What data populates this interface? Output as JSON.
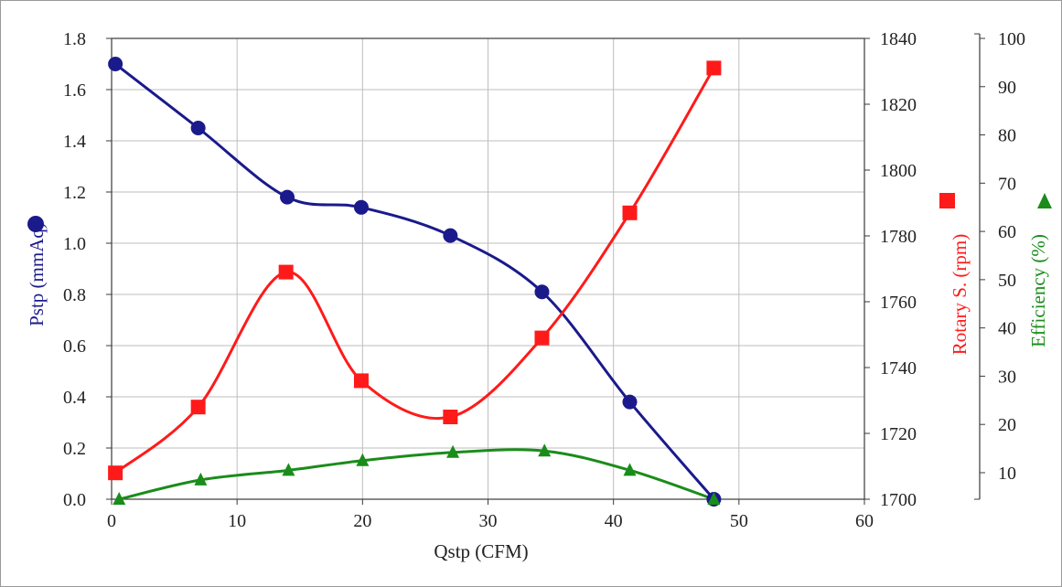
{
  "chart_data": {
    "type": "line",
    "xlabel": "Qstp (CFM)",
    "ylabel_left": "Pstp (mmAq)",
    "ylabel_right1": "Rotary S. (rpm)",
    "ylabel_right2": "Efficiency (%)",
    "xlim": [
      0,
      60
    ],
    "ylim_left": [
      0,
      1.8
    ],
    "ylim_right1": [
      1700,
      1840
    ],
    "ylim_right2": [
      4.5,
      100
    ],
    "x_ticks": [
      "0",
      "10",
      "20",
      "30",
      "40",
      "50",
      "60"
    ],
    "y_left_ticks": [
      "0.0",
      "0.2",
      "0.4",
      "0.6",
      "0.8",
      "1.0",
      "1.2",
      "1.4",
      "1.6",
      "1.8"
    ],
    "y_right1_ticks": [
      "1700",
      "1720",
      "1740",
      "1760",
      "1780",
      "1800",
      "1820",
      "1840"
    ],
    "y_right2_ticks": [
      "10",
      "20",
      "30",
      "40",
      "50",
      "60",
      "70",
      "80",
      "90",
      "100"
    ],
    "grid": true,
    "series": [
      {
        "axis": "left",
        "marker": "circle",
        "color": "#1a1a8c",
        "x": [
          0.3,
          6.9,
          14.0,
          19.9,
          27.0,
          34.3,
          41.3,
          48.0
        ],
        "y": [
          1.7,
          1.45,
          1.18,
          1.14,
          1.03,
          0.81,
          0.38,
          0.0
        ]
      },
      {
        "axis": "right1",
        "marker": "square",
        "color": "#ff1a1a",
        "x": [
          0.3,
          6.9,
          13.9,
          19.9,
          27.0,
          34.3,
          41.3,
          48.0
        ],
        "y": [
          1708,
          1728,
          1769,
          1736,
          1725,
          1749,
          1787,
          1831
        ]
      },
      {
        "axis": "right2",
        "marker": "triangle",
        "color": "#1a8c1a",
        "x": [
          0.6,
          7.1,
          14.1,
          20.0,
          27.2,
          34.5,
          41.3,
          48.0
        ],
        "y": [
          4.5,
          8.5,
          10.5,
          12.5,
          14.2,
          14.5,
          10.5,
          4.5
        ]
      }
    ]
  }
}
